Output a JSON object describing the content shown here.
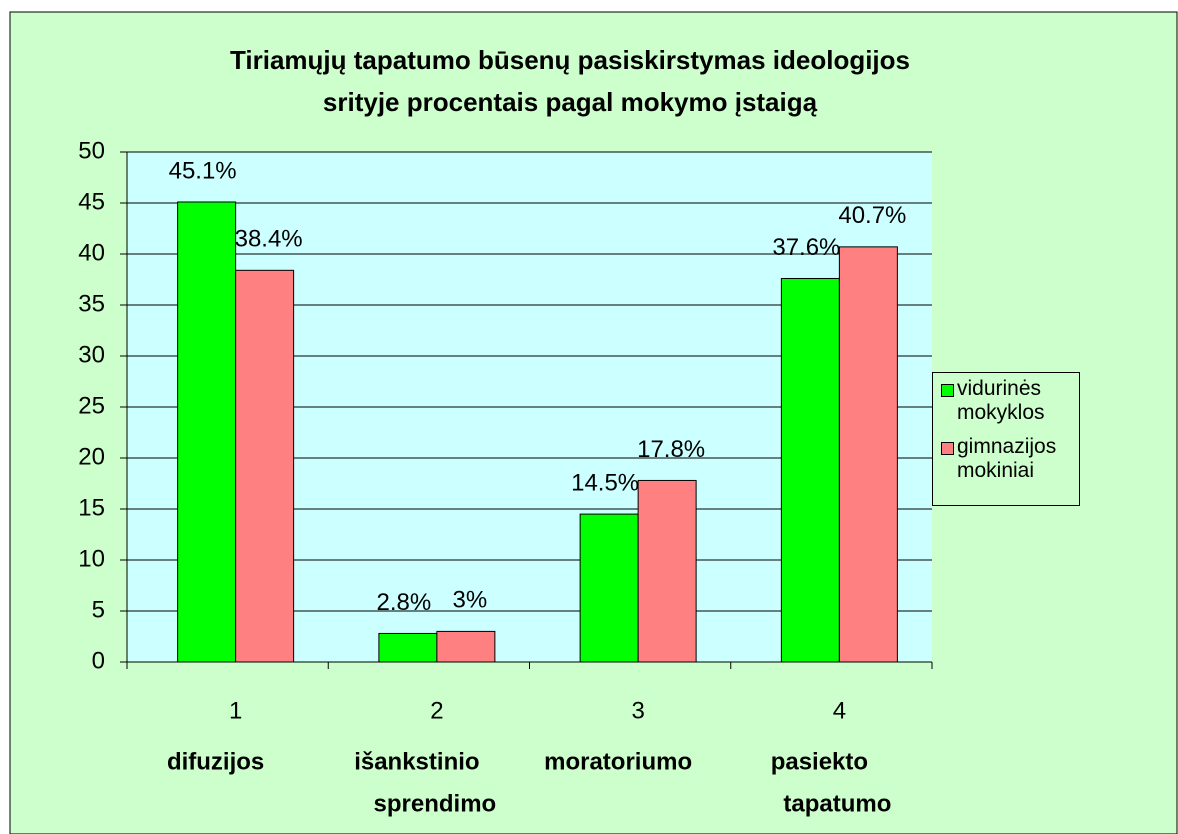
{
  "chart_data": {
    "type": "bar",
    "title": [
      "Tiriamųjų tapatumo būsenų pasiskirstymas ideologijos",
      "srityje procentais pagal mokymo įstaigą"
    ],
    "categories": [
      "1",
      "2",
      "3",
      "4"
    ],
    "category_labels": [
      [
        "difuzijos"
      ],
      [
        "išankstinio",
        "sprendimo"
      ],
      [
        "moratoriumo"
      ],
      [
        "pasiekto",
        "tapatumo"
      ]
    ],
    "series": [
      {
        "name": "vidurinės mokyklos",
        "color": "#00ff00",
        "values": [
          45.1,
          2.8,
          14.5,
          37.6
        ],
        "value_labels": [
          "45.1%",
          "2.8%",
          "14.5%",
          "37.6%"
        ]
      },
      {
        "name": "gimnazijos mokiniai",
        "color": "#ff8080",
        "values": [
          38.4,
          3,
          17.8,
          40.7
        ],
        "value_labels": [
          "38.4%",
          "3%",
          "17.8%",
          "40.7%"
        ]
      }
    ],
    "ylim": [
      0,
      50
    ],
    "yticks": [
      0,
      5,
      10,
      15,
      20,
      25,
      30,
      35,
      40,
      45,
      50
    ],
    "grid": true,
    "legend": "right"
  }
}
